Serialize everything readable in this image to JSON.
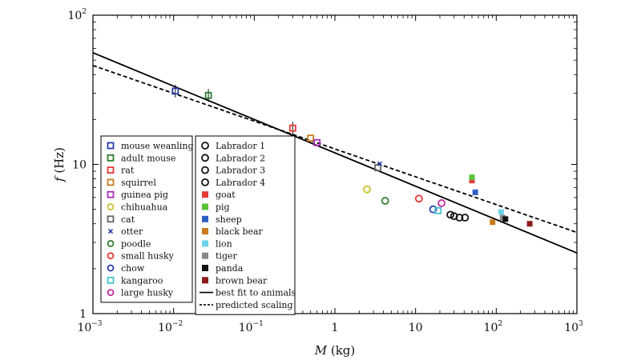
{
  "chart_data": {
    "type": "scatter",
    "xscale": "log",
    "yscale": "log",
    "xlim": [
      0.001,
      1000
    ],
    "ylim": [
      1,
      100
    ],
    "xlabel": {
      "var": "M",
      "unit": " (kg)"
    },
    "ylabel": {
      "var": "f",
      "unit": " (Hz)"
    },
    "x_ticks": [
      {
        "base": "10",
        "exp": "−3"
      },
      {
        "base": "10",
        "exp": "−2"
      },
      {
        "base": "10",
        "exp": "−1"
      },
      {
        "base": "1",
        "exp": ""
      },
      {
        "base": "10",
        "exp": ""
      },
      {
        "base": "10",
        "exp": "2"
      },
      {
        "base": "10",
        "exp": "3"
      }
    ],
    "y_ticks": [
      {
        "base": "1",
        "exp": ""
      },
      {
        "base": "10",
        "exp": ""
      },
      {
        "base": "10",
        "exp": "2"
      }
    ],
    "series": [
      {
        "name": "mouse weanling",
        "marker": "square-open",
        "color": "#2a3ea8",
        "points": [
          [
            0.0105,
            31
          ]
        ],
        "errorbar": true
      },
      {
        "name": "adult mouse",
        "marker": "square-open",
        "color": "#2e7d32",
        "points": [
          [
            0.027,
            29
          ]
        ],
        "errorbar": true
      },
      {
        "name": "rat",
        "marker": "square-open",
        "color": "#e53935",
        "points": [
          [
            0.3,
            17.5
          ]
        ],
        "errorbar": true
      },
      {
        "name": "squirrel",
        "marker": "square-open",
        "color": "#c77a1e",
        "points": [
          [
            0.5,
            15
          ]
        ],
        "errorbar": false
      },
      {
        "name": "guinea pig",
        "marker": "square-open",
        "color": "#a62fb5",
        "points": [
          [
            0.6,
            14
          ]
        ],
        "errorbar": false
      },
      {
        "name": "chihuahua",
        "marker": "circle-open",
        "color": "#c9c22e",
        "points": [
          [
            2.5,
            6.8
          ]
        ],
        "errorbar": false
      },
      {
        "name": "cat",
        "marker": "square-open",
        "color": "#666666",
        "points": [
          [
            3.4,
            9.5
          ]
        ],
        "errorbar": false
      },
      {
        "name": "otter",
        "marker": "cross",
        "color": "#2a3ea8",
        "points": [
          [
            3.6,
            10.1
          ]
        ],
        "errorbar": false
      },
      {
        "name": "poodle",
        "marker": "circle-open",
        "color": "#2e7d32",
        "points": [
          [
            4.2,
            5.7
          ]
        ],
        "errorbar": false
      },
      {
        "name": "small husky",
        "marker": "circle-open",
        "color": "#e53935",
        "points": [
          [
            11,
            5.9
          ]
        ],
        "errorbar": false
      },
      {
        "name": "chow",
        "marker": "circle-open",
        "color": "#2a3ea8",
        "points": [
          [
            16.5,
            5.0
          ]
        ],
        "errorbar": false
      },
      {
        "name": "kangaroo",
        "marker": "square-open",
        "color": "#47c1cf",
        "points": [
          [
            19,
            4.9
          ]
        ],
        "errorbar": false
      },
      {
        "name": "large husky",
        "marker": "circle-open",
        "color": "#c02aa0",
        "points": [
          [
            21,
            5.5
          ]
        ],
        "errorbar": false
      },
      {
        "name": "Labrador  1",
        "marker": "circle-open",
        "color": "#111111",
        "points": [
          [
            27,
            4.6
          ]
        ],
        "errorbar": false
      },
      {
        "name": "Labrador  2",
        "marker": "circle-open",
        "color": "#111111",
        "points": [
          [
            30,
            4.5
          ]
        ],
        "errorbar": false
      },
      {
        "name": "Labrador  3",
        "marker": "circle-open",
        "color": "#111111",
        "points": [
          [
            35,
            4.4
          ]
        ],
        "errorbar": false
      },
      {
        "name": "Labrador  4",
        "marker": "circle-open",
        "color": "#111111",
        "points": [
          [
            41,
            4.4
          ]
        ],
        "errorbar": false
      },
      {
        "name": "goat",
        "marker": "square-filled",
        "color": "#e53935",
        "points": [
          [
            50,
            7.8
          ]
        ],
        "errorbar": false
      },
      {
        "name": "pig",
        "marker": "square-filled",
        "color": "#5cc23a",
        "points": [
          [
            50,
            8.2
          ]
        ],
        "errorbar": false
      },
      {
        "name": "sheep",
        "marker": "square-filled",
        "color": "#2f5fc4",
        "points": [
          [
            55,
            6.5
          ]
        ],
        "errorbar": false
      },
      {
        "name": "black bear",
        "marker": "square-filled",
        "color": "#c77a1e",
        "points": [
          [
            90,
            4.1
          ]
        ],
        "errorbar": false
      },
      {
        "name": "lion",
        "marker": "square-filled",
        "color": "#6fd3e6",
        "points": [
          [
            115,
            4.8
          ]
        ],
        "errorbar": false
      },
      {
        "name": "tiger",
        "marker": "square-filled",
        "color": "#888888",
        "points": [
          [
            120,
            4.4
          ]
        ],
        "errorbar": false
      },
      {
        "name": "panda",
        "marker": "square-filled",
        "color": "#111111",
        "points": [
          [
            130,
            4.3
          ]
        ],
        "errorbar": false
      },
      {
        "name": "brown bear",
        "marker": "square-filled",
        "color": "#8b1a1a",
        "points": [
          [
            260,
            4.0
          ]
        ],
        "errorbar": false
      }
    ],
    "lines": [
      {
        "name": "best fit to animals",
        "style": "solid",
        "color": "#000000",
        "points": [
          [
            0.001,
            56
          ],
          [
            1000,
            2.55
          ]
        ]
      },
      {
        "name": "predicted scaling",
        "style": "dashed",
        "color": "#000000",
        "points": [
          [
            0.001,
            46
          ],
          [
            1000,
            3.5
          ]
        ]
      }
    ]
  }
}
